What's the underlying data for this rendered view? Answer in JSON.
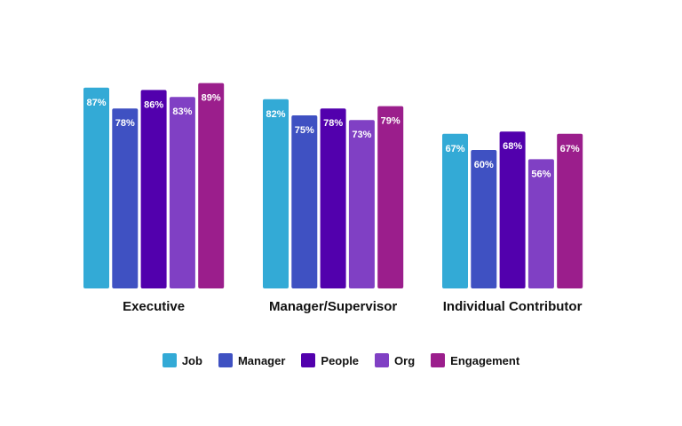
{
  "chart_data": {
    "type": "bar",
    "categories": [
      "Executive",
      "Manager/Supervisor",
      "Individual Contributor"
    ],
    "series": [
      {
        "name": "Job",
        "color": "#33AAD6",
        "values": [
          87,
          82,
          67
        ]
      },
      {
        "name": "Manager",
        "color": "#3F51C2",
        "values": [
          78,
          75,
          60
        ]
      },
      {
        "name": "People",
        "color": "#5200AD",
        "values": [
          86,
          78,
          68
        ]
      },
      {
        "name": "Org",
        "color": "#8040C4",
        "values": [
          83,
          73,
          56
        ]
      },
      {
        "name": "Engagement",
        "color": "#9B1E8C",
        "values": [
          89,
          79,
          67
        ]
      }
    ],
    "value_suffix": "%",
    "ylim": [
      0,
      100
    ],
    "legend_position": "bottom",
    "grid": false
  }
}
